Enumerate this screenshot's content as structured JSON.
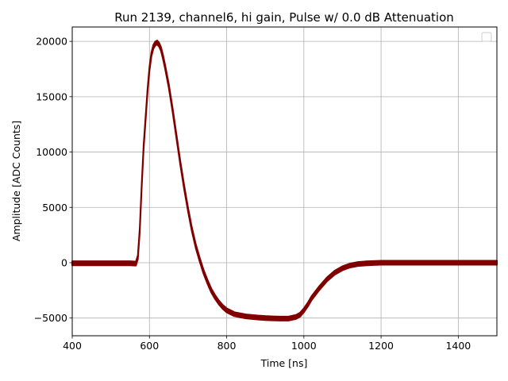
{
  "chart_data": {
    "type": "line",
    "title": "Run 2139, channel6, hi gain, Pulse w/ 0.0 dB Attenuation",
    "xlabel": "Time [ns]",
    "ylabel": "Amplitude [ADC Counts]",
    "xlim": [
      400,
      1500
    ],
    "ylim": [
      -6600,
      21300
    ],
    "xticks": [
      400,
      600,
      800,
      1000,
      1200,
      1400
    ],
    "yticks": [
      -5000,
      0,
      5000,
      10000,
      15000,
      20000
    ],
    "grid": true,
    "legend": "top-right (empty)",
    "series": [
      {
        "color": "#800000",
        "band_halfwidth": 180,
        "x": [
          400,
          450,
          500,
          550,
          565,
          570,
          575,
          580,
          585,
          590,
          595,
          600,
          605,
          610,
          615,
          620,
          625,
          630,
          635,
          640,
          650,
          660,
          670,
          680,
          690,
          700,
          710,
          720,
          730,
          740,
          750,
          760,
          770,
          780,
          790,
          800,
          820,
          850,
          880,
          900,
          920,
          940,
          960,
          980,
          990,
          1000,
          1010,
          1020,
          1040,
          1060,
          1080,
          1100,
          1120,
          1140,
          1160,
          1180,
          1200,
          1250,
          1300,
          1350,
          1400,
          1450,
          1500
        ],
        "y": [
          -50,
          -50,
          -50,
          -50,
          -80,
          500,
          3000,
          7000,
          10500,
          13000,
          15500,
          17500,
          18800,
          19500,
          19800,
          19900,
          19700,
          19300,
          18600,
          17800,
          16000,
          13800,
          11400,
          9000,
          6800,
          4800,
          3000,
          1500,
          300,
          -800,
          -1700,
          -2500,
          -3100,
          -3600,
          -4000,
          -4300,
          -4650,
          -4850,
          -4950,
          -5000,
          -5030,
          -5050,
          -5050,
          -4900,
          -4700,
          -4300,
          -3800,
          -3200,
          -2300,
          -1500,
          -900,
          -500,
          -250,
          -120,
          -60,
          -30,
          0,
          0,
          0,
          0,
          0,
          0,
          0
        ]
      }
    ]
  }
}
